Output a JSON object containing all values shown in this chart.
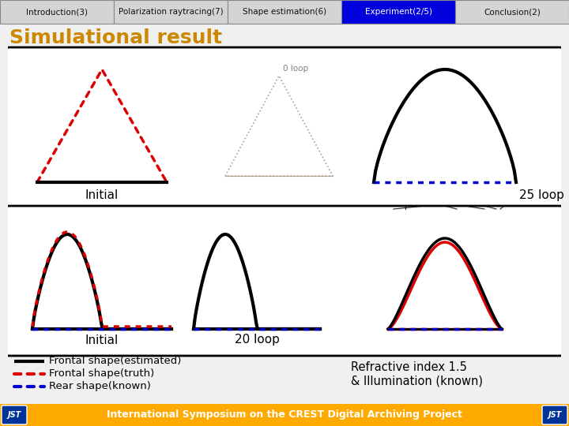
{
  "nav_labels": [
    "Introduction(3)",
    "Polarization raytracing(7)",
    "Shape estimation(6)",
    "Experiment(2/5)",
    "Conclusion(2)"
  ],
  "nav_active": 3,
  "nav_bg": "#d4d4d4",
  "nav_active_bg": "#0000dd",
  "nav_active_fg": "#ffffff",
  "nav_fg": "#111111",
  "title": "Simulational result",
  "title_color": "#cc8800",
  "footer_text": "International Symposium on the CREST Digital Archiving Project",
  "footer_bg": "#ffaa00",
  "footer_fg": "#ffffff",
  "legend_items": [
    {
      "label": "Frontal shape(estimated)",
      "color": "#000000",
      "style": "solid"
    },
    {
      "label": "Frontal shape(truth)",
      "color": "#dd0000",
      "style": "dotted"
    },
    {
      "label": "Rear shape(known)",
      "color": "#0000cc",
      "style": "dotted"
    }
  ],
  "refr_text": "Refractive index 1.5\n& Illumination (known)",
  "bg_color": "#f0f0f0"
}
